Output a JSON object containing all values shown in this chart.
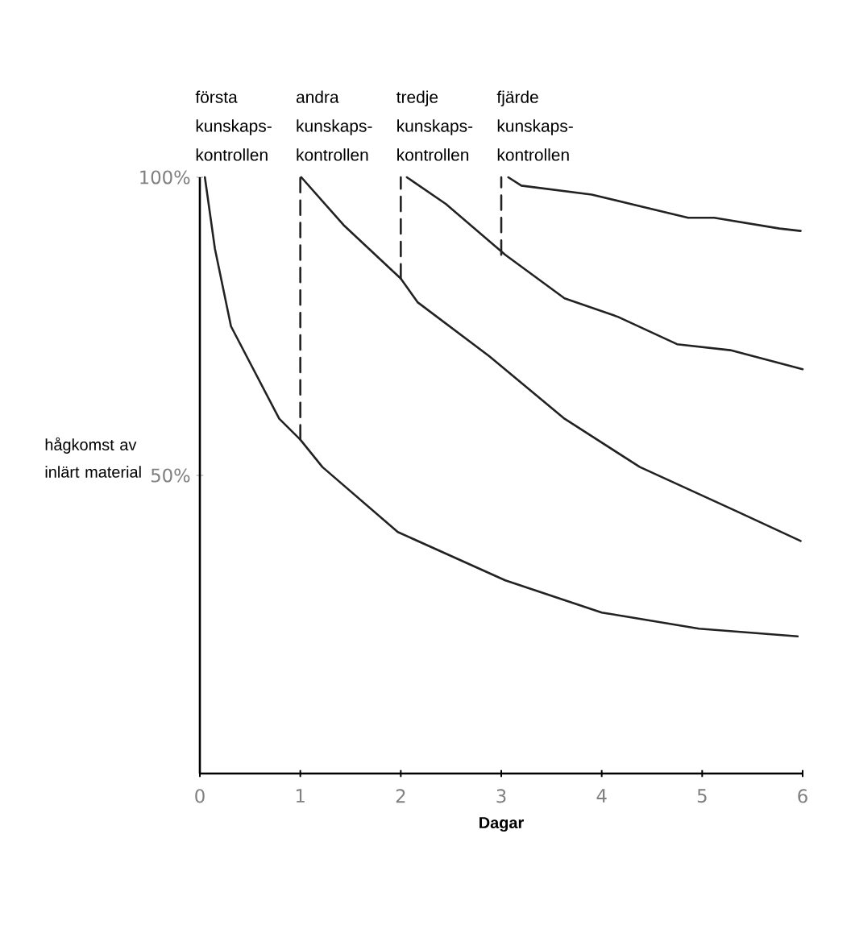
{
  "chart_data": {
    "type": "line",
    "xlabel": "Dagar",
    "ylabel": "hågkomst av inlärt material",
    "xlim": [
      0,
      6
    ],
    "ylim": [
      0,
      100
    ],
    "xticks": [
      0,
      1,
      2,
      3,
      4,
      5,
      6
    ],
    "yticks": [
      {
        "value": 50,
        "label": "50%"
      },
      {
        "value": 100,
        "label": "100%"
      }
    ],
    "marker": "none",
    "series": [
      {
        "color": "#222222",
        "x": [
          0.05,
          0.15,
          0.31,
          0.79,
          1.0,
          1.22,
          1.97,
          3.04,
          4.0,
          4.97,
          5.95
        ],
        "values": [
          100,
          88,
          75,
          59.5,
          56,
          51.4,
          40.5,
          32.4,
          27,
          24.3,
          23
        ]
      },
      {
        "color": "#222222",
        "x": [
          1.01,
          1.43,
          2.0,
          2.17,
          2.88,
          3.63,
          4.38,
          5.34,
          5.98
        ],
        "values": [
          100,
          92,
          83,
          79,
          70,
          59.5,
          51.4,
          44,
          39
        ]
      },
      {
        "color": "#222222",
        "x": [
          2.06,
          2.45,
          3.04,
          3.63,
          4.16,
          4.75,
          5.28,
          6.0
        ],
        "values": [
          100,
          95.5,
          87,
          79.7,
          76.6,
          72,
          71,
          67.8
        ]
      },
      {
        "color": "#222222",
        "x": [
          3.07,
          3.2,
          3.9,
          4.86,
          5.12,
          5.77,
          5.98
        ],
        "values": [
          100,
          98.6,
          97.1,
          93.2,
          93.2,
          91.4,
          91
        ]
      },
      {
        "color": "#222222",
        "line_style": "dashed",
        "x": [
          1,
          1
        ],
        "values": [
          56,
          100
        ]
      },
      {
        "color": "#222222",
        "line_style": "dashed",
        "x": [
          2,
          2
        ],
        "values": [
          83,
          100
        ]
      },
      {
        "color": "#222222",
        "line_style": "dashed",
        "x": [
          3,
          3
        ],
        "values": [
          87,
          100
        ]
      }
    ],
    "annotations": [
      {
        "text": "första kunskaps-kontrollen",
        "x": 0,
        "y": 100
      },
      {
        "text": "andra kunskaps-kontrollen",
        "x": 1,
        "y": 100
      },
      {
        "text": "tredje kunskaps-kontrollen",
        "x": 2,
        "y": 100
      },
      {
        "text": "fjärde kunskaps-kontrollen",
        "x": 3,
        "y": 100
      }
    ]
  }
}
